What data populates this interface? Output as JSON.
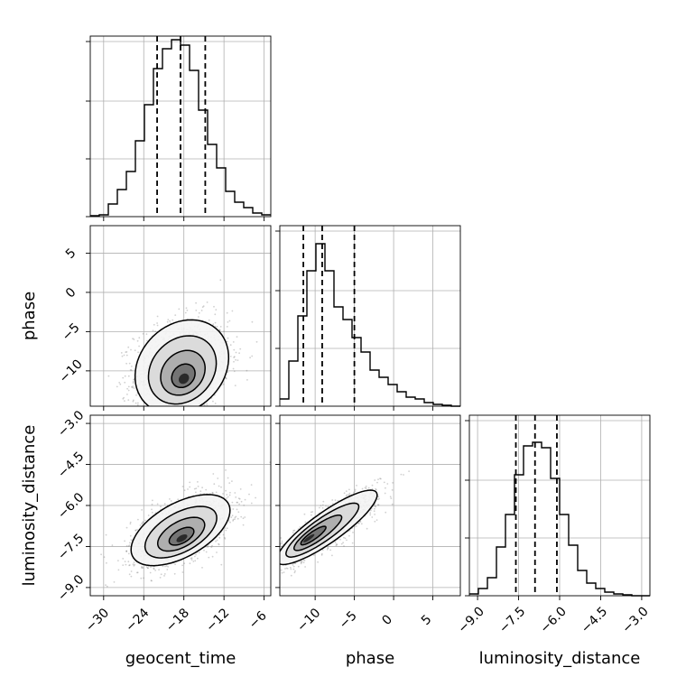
{
  "chart_data": {
    "type": "corner",
    "parameters": [
      "geocent_time",
      "phase",
      "luminosity_distance"
    ],
    "axes": {
      "geocent_time": {
        "range": [
          -32,
          -5
        ],
        "ticks": [
          -30,
          -24,
          -18,
          -12,
          -6
        ],
        "tick_labels": [
          "−30",
          "−24",
          "−18",
          "−12",
          "−6"
        ],
        "quantiles": [
          -22,
          -18.5,
          -14.8
        ],
        "hist_edges_start": -32,
        "hist_bin_width": 1.35,
        "hist_counts": [
          0.005,
          0.01,
          0.07,
          0.15,
          0.25,
          0.42,
          0.62,
          0.82,
          0.93,
          0.98,
          0.95,
          0.81,
          0.59,
          0.4,
          0.27,
          0.14,
          0.08,
          0.05,
          0.02,
          0.01
        ]
      },
      "phase": {
        "range": [
          -14.5,
          8.5
        ],
        "ticks": [
          -10,
          -5,
          0,
          5
        ],
        "tick_labels": [
          "−10",
          "−5",
          "0",
          "5"
        ],
        "quantiles": [
          -11.5,
          -9.1,
          -5
        ],
        "hist_edges_start": -14.5,
        "hist_bin_width": 1.15,
        "hist_counts": [
          0.04,
          0.25,
          0.5,
          0.75,
          0.9,
          0.75,
          0.55,
          0.48,
          0.38,
          0.3,
          0.2,
          0.16,
          0.12,
          0.08,
          0.05,
          0.04,
          0.02,
          0.01,
          0.005,
          0.0
        ]
      },
      "luminosity_distance": {
        "range": [
          -9.3,
          -2.7
        ],
        "ticks": [
          -9.0,
          -7.5,
          -6.0,
          -4.5,
          -3.0
        ],
        "tick_labels": [
          "−9.0",
          "−7.5",
          "−6.0",
          "−4.5",
          "−3.0"
        ],
        "quantiles": [
          -7.6,
          -6.9,
          -6.1
        ],
        "hist_edges_start": -9.3,
        "hist_bin_width": 0.33,
        "hist_counts": [
          0.01,
          0.04,
          0.1,
          0.27,
          0.45,
          0.67,
          0.83,
          0.85,
          0.82,
          0.65,
          0.45,
          0.28,
          0.14,
          0.07,
          0.04,
          0.02,
          0.01,
          0.005,
          0.0,
          0.0
        ]
      }
    },
    "pairs": [
      {
        "x": "geocent_time",
        "y": "phase",
        "mean": [
          -18.3,
          -9.5
        ],
        "sd": [
          3.5,
          3.0
        ],
        "corr": 0.2,
        "peak": [
          -18.0,
          -11.0
        ]
      },
      {
        "x": "geocent_time",
        "y": "luminosity_distance",
        "mean": [
          -18.5,
          -6.9
        ],
        "sd": [
          3.7,
          0.65
        ],
        "corr": 0.55,
        "peak": [
          -18.3,
          -7.2
        ]
      },
      {
        "x": "phase",
        "y": "luminosity_distance",
        "mean": [
          -8.5,
          -6.8
        ],
        "sd": [
          3.2,
          0.68
        ],
        "corr": 0.87,
        "peak": [
          -10.8,
          -7.2
        ]
      }
    ],
    "legend": "none",
    "grid": true
  }
}
